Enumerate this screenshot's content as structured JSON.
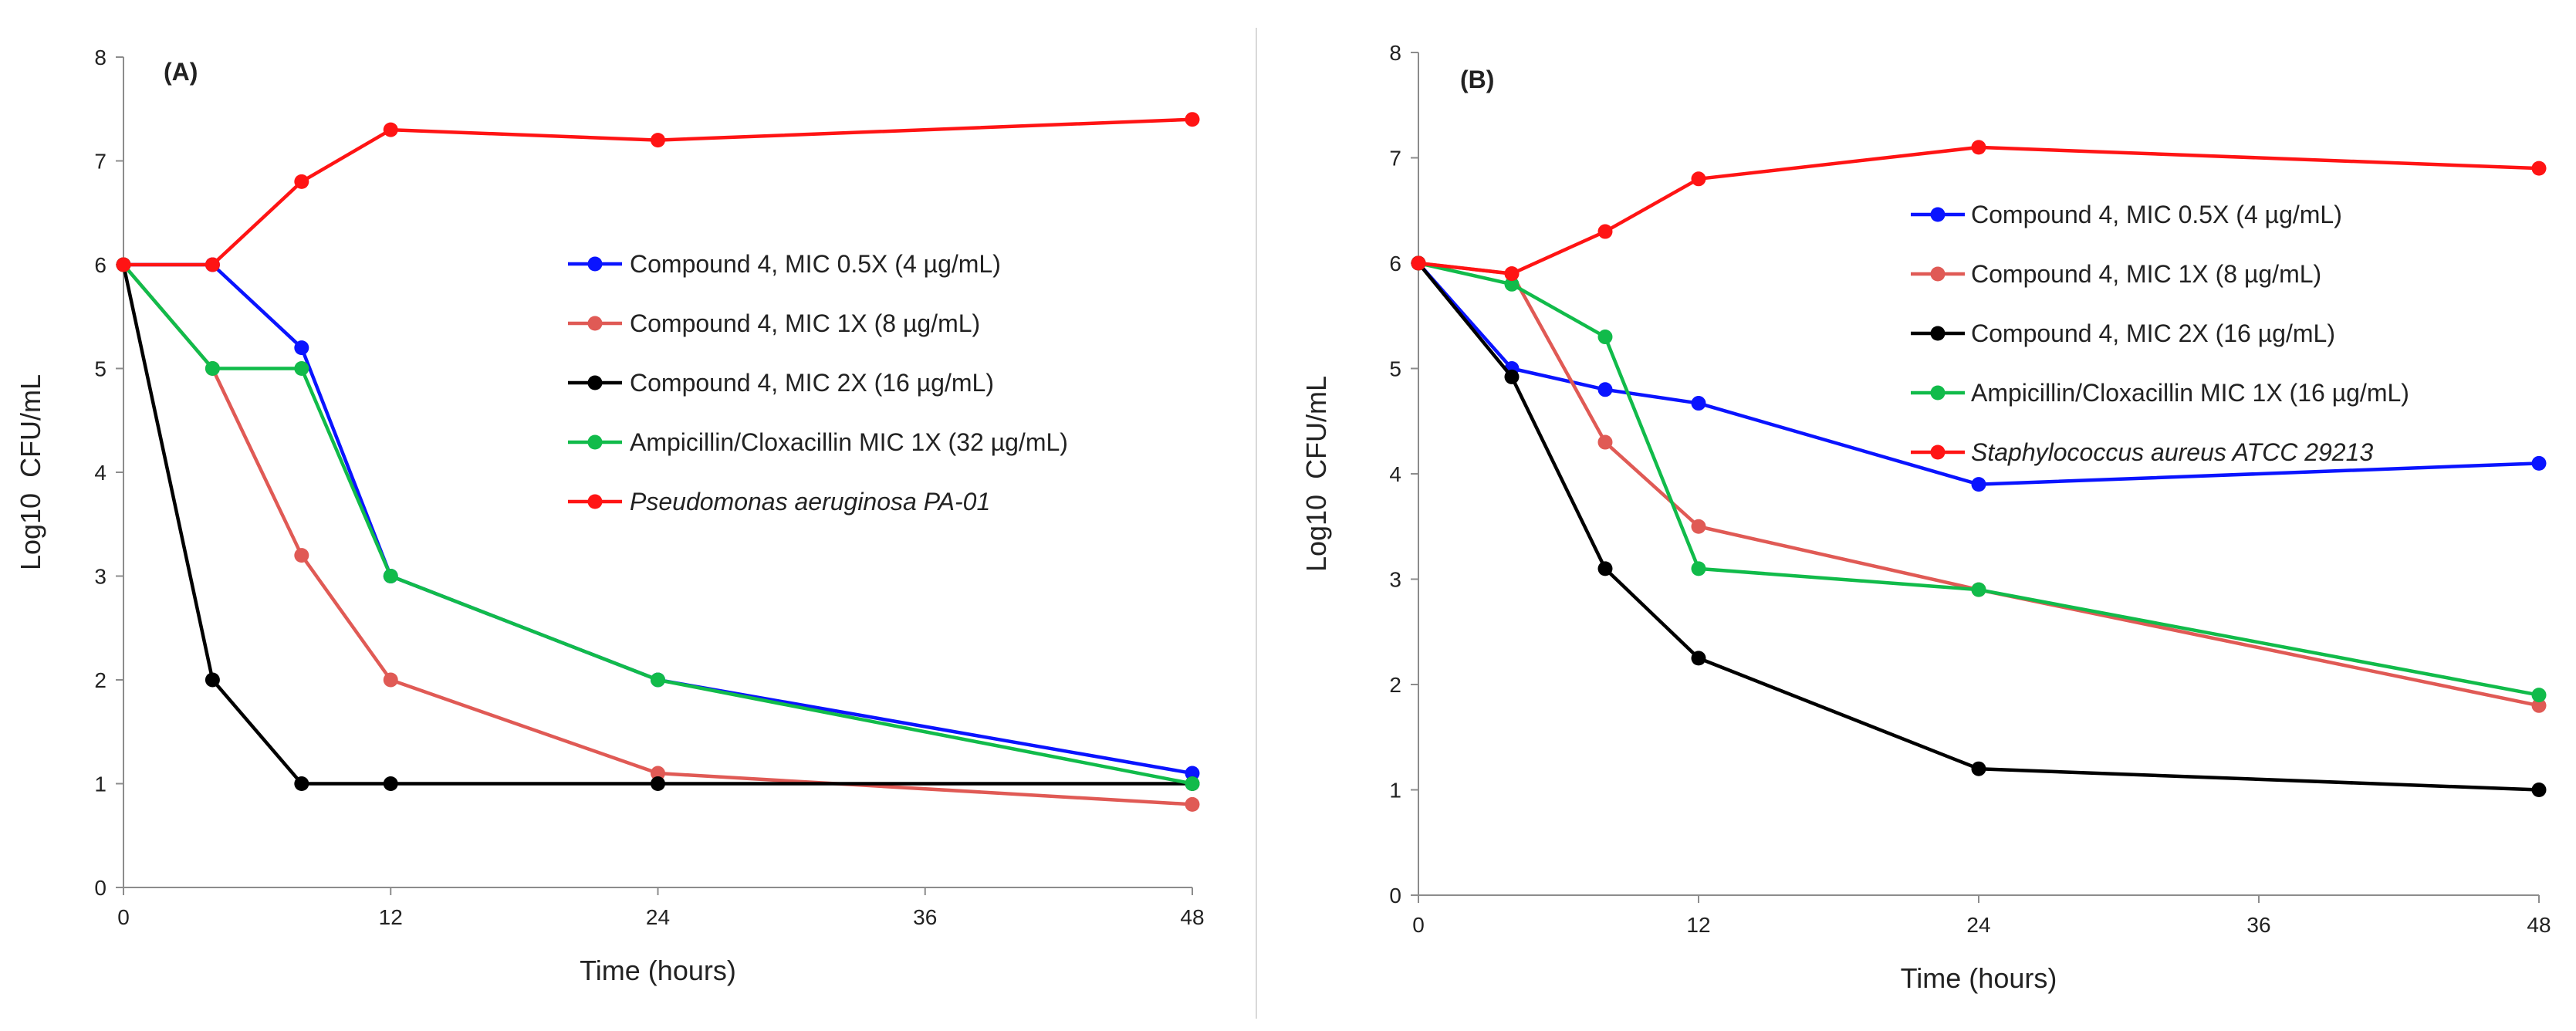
{
  "chart_data": [
    {
      "type": "line",
      "panel_label": "(A)",
      "xlabel": "Time (hours)",
      "ylabel": "Log10  CFU/mL",
      "xlim": [
        0,
        48
      ],
      "ylim": [
        0,
        8
      ],
      "xticks": [
        0,
        12,
        24,
        36,
        48
      ],
      "yticks": [
        0,
        1,
        2,
        3,
        4,
        5,
        6,
        7,
        8
      ],
      "grid": false,
      "legend_position": "center-right",
      "series": [
        {
          "name": "Compound 4, MIC 0.5X (4 µg/mL)",
          "color": "#0a14ff",
          "italic": false,
          "x": [
            0,
            4,
            8,
            12,
            24,
            48
          ],
          "y": [
            6.0,
            6.0,
            5.2,
            3.0,
            2.0,
            1.1
          ]
        },
        {
          "name": "Compound 4, MIC 1X (8 µg/mL)",
          "color": "#e05a55",
          "italic": false,
          "x": [
            0,
            4,
            8,
            12,
            24,
            48
          ],
          "y": [
            6.0,
            5.0,
            3.2,
            2.0,
            1.1,
            0.8
          ]
        },
        {
          "name": "Compound 4, MIC 2X (16 µg/mL)",
          "color": "#000000",
          "italic": false,
          "x": [
            0,
            4,
            8,
            12,
            24,
            48
          ],
          "y": [
            6.0,
            2.0,
            1.0,
            1.0,
            1.0,
            1.0
          ]
        },
        {
          "name": "Ampicillin/Cloxacillin MIC 1X (32 µg/mL)",
          "color": "#11bb4a",
          "italic": false,
          "x": [
            0,
            4,
            8,
            12,
            24,
            48
          ],
          "y": [
            6.0,
            5.0,
            5.0,
            3.0,
            2.0,
            1.0
          ]
        },
        {
          "name": "Pseudomonas aeruginosa PA-01",
          "color": "#ff1414",
          "italic": true,
          "x": [
            0,
            4,
            8,
            12,
            24,
            48
          ],
          "y": [
            6.0,
            6.0,
            6.8,
            7.3,
            7.2,
            7.4
          ]
        }
      ]
    },
    {
      "type": "line",
      "panel_label": "(B)",
      "xlabel": "Time (hours)",
      "ylabel": "Log10  CFU/mL",
      "xlim": [
        0,
        48
      ],
      "ylim": [
        0,
        8
      ],
      "xticks": [
        0,
        12,
        24,
        36,
        48
      ],
      "yticks": [
        0,
        1,
        2,
        3,
        4,
        5,
        6,
        7,
        8
      ],
      "grid": false,
      "legend_position": "top-right",
      "series": [
        {
          "name": "Compound 4, MIC 0.5X (4 µg/mL)",
          "color": "#0a14ff",
          "italic": false,
          "x": [
            0,
            4,
            8,
            12,
            24,
            48
          ],
          "y": [
            6.0,
            5.0,
            4.8,
            4.67,
            3.9,
            4.1
          ]
        },
        {
          "name": "Compound 4, MIC 1X (8 µg/mL)",
          "color": "#e05a55",
          "italic": false,
          "x": [
            0,
            4,
            8,
            12,
            24,
            48
          ],
          "y": [
            6.0,
            5.9,
            4.3,
            3.5,
            2.9,
            1.8
          ]
        },
        {
          "name": "Compound 4, MIC 2X (16 µg/mL)",
          "color": "#000000",
          "italic": false,
          "x": [
            0,
            4,
            8,
            12,
            24,
            48
          ],
          "y": [
            6.0,
            4.92,
            3.1,
            2.25,
            1.2,
            1.0
          ]
        },
        {
          "name": "Ampicillin/Cloxacillin MIC 1X (16 µg/mL)",
          "color": "#11bb4a",
          "italic": false,
          "x": [
            0,
            4,
            8,
            12,
            24,
            48
          ],
          "y": [
            6.0,
            5.8,
            5.3,
            3.1,
            2.9,
            1.9
          ]
        },
        {
          "name": "Staphylococcus aureus ATCC 29213",
          "color": "#ff1414",
          "italic": true,
          "x": [
            0,
            4,
            8,
            12,
            24,
            48
          ],
          "y": [
            6.0,
            5.9,
            6.3,
            6.8,
            7.1,
            6.9
          ]
        }
      ]
    }
  ]
}
